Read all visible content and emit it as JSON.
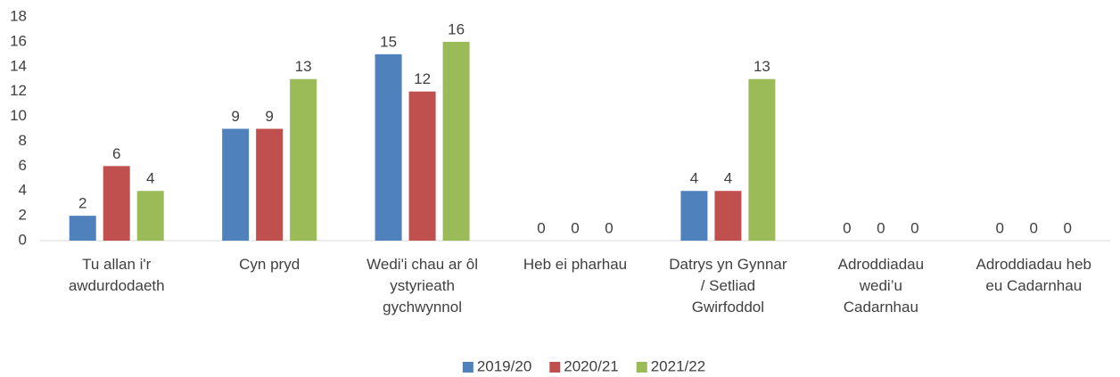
{
  "chart_data": {
    "type": "bar",
    "categories": [
      "Tu allan i'r\nawdurdodaeth",
      "Cyn pryd",
      "Wedi'i chau ar ôl\nystyrieath\ngychwynnol",
      "Heb ei pharhau",
      "Datrys yn Gynnar\n/ Setliad\nGwirfoddol",
      "Adroddiadau\nwedi’u\nCadarnhau",
      "Adroddiadau heb\neu Cadarnhau"
    ],
    "series": [
      {
        "name": "2019/20",
        "color": "#4f81bd",
        "values": [
          2,
          9,
          15,
          0,
          4,
          0,
          0
        ]
      },
      {
        "name": "2020/21",
        "color": "#c0504d",
        "values": [
          6,
          9,
          12,
          0,
          4,
          0,
          0
        ]
      },
      {
        "name": "2021/22",
        "color": "#9bbb59",
        "values": [
          4,
          13,
          16,
          0,
          13,
          0,
          0
        ]
      }
    ],
    "ylim": [
      0,
      18
    ],
    "yticks": [
      0,
      2,
      4,
      6,
      8,
      10,
      12,
      14,
      16,
      18
    ],
    "grid": false,
    "legend": "bottom"
  }
}
